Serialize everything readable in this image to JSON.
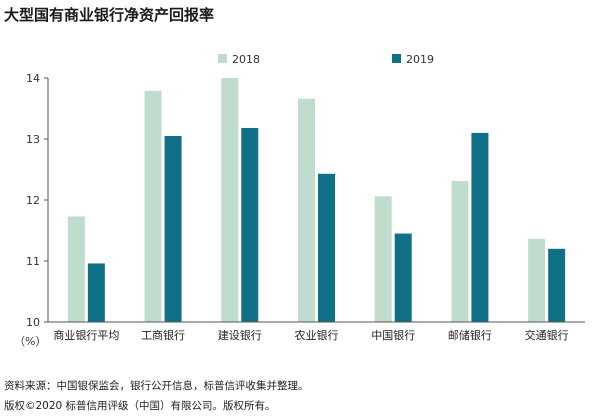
{
  "title": "大型国有商业银行净资产回报率",
  "unit_label": "（%）",
  "source_note": "资料来源：中国银保监会，银行公开信息，标普信评收集并整理。",
  "copyright_note": "版权©2020 标普信用评级（中国）有限公司。版权所有。",
  "colors": {
    "series_2018": "#bfdccd",
    "series_2019": "#0f7086",
    "axis": "#555555"
  },
  "chart_data": {
    "type": "bar",
    "categories": [
      "商业银行平均",
      "工商银行",
      "建设银行",
      "农业银行",
      "中国银行",
      "邮储银行",
      "交通银行"
    ],
    "series": [
      {
        "name": "2018",
        "values": [
          11.73,
          13.79,
          14.0,
          13.66,
          12.06,
          12.31,
          11.36
        ]
      },
      {
        "name": "2019",
        "values": [
          10.96,
          13.05,
          13.18,
          12.43,
          11.45,
          13.1,
          11.2
        ]
      }
    ],
    "ylim": [
      10,
      14
    ],
    "yticks": [
      10,
      11,
      12,
      13,
      14
    ],
    "xlabel": "",
    "ylabel": "",
    "legend_position": "top-center",
    "grid": false
  }
}
